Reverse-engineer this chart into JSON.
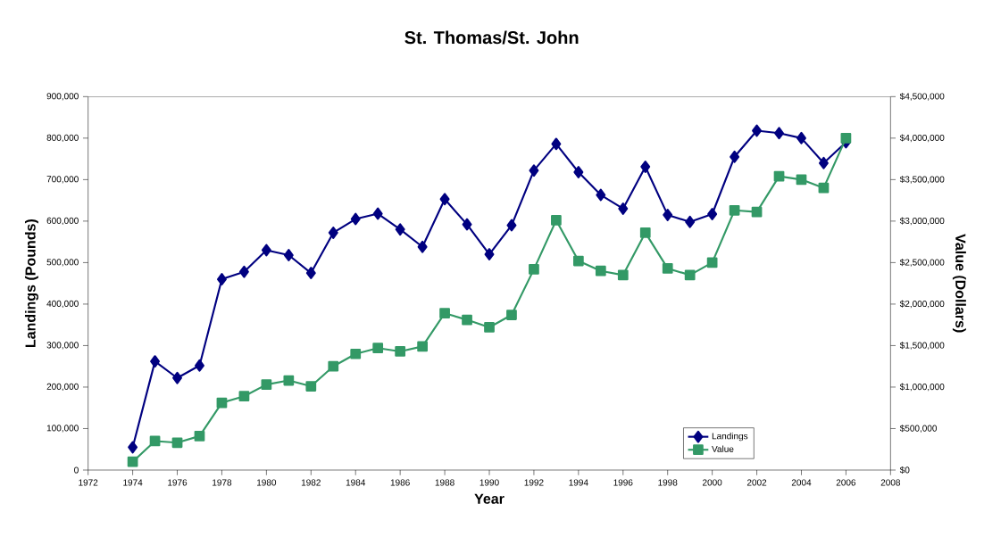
{
  "chart_data": {
    "type": "line",
    "title": "St. Thomas/St. John",
    "xlabel": "Year",
    "ylabel": "Landings (Pounds)",
    "y2label": "Value (Dollars)",
    "x": [
      1974,
      1975,
      1976,
      1977,
      1978,
      1979,
      1980,
      1981,
      1982,
      1983,
      1984,
      1985,
      1986,
      1987,
      1988,
      1989,
      1990,
      1991,
      1992,
      1993,
      1994,
      1995,
      1996,
      1997,
      1998,
      1999,
      2000,
      2001,
      2002,
      2003,
      2004,
      2005,
      2006
    ],
    "series": [
      {
        "name": "Landings",
        "color": "#000080",
        "marker": "diamond",
        "values": [
          55000,
          262000,
          222000,
          252000,
          460000,
          478000,
          530000,
          518000,
          475000,
          572000,
          605000,
          618000,
          580000,
          538000,
          653000,
          592000,
          520000,
          590000,
          722000,
          786000,
          718000,
          663000,
          630000,
          731000,
          615000,
          598000,
          617000,
          755000,
          818000,
          812000,
          800000,
          740000,
          790000
        ]
      },
      {
        "name": "Value",
        "color": "#339966",
        "marker": "square",
        "axis": "y2",
        "values": [
          100000,
          350000,
          330000,
          410000,
          810000,
          890000,
          1030000,
          1080000,
          1010000,
          1250000,
          1400000,
          1470000,
          1430000,
          1490000,
          1890000,
          1810000,
          1720000,
          1870000,
          2420000,
          3010000,
          2520000,
          2400000,
          2350000,
          2860000,
          2430000,
          2350000,
          2500000,
          3130000,
          3110000,
          3540000,
          3500000,
          3400000,
          4000000
        ]
      }
    ],
    "xlim": [
      1972,
      2008
    ],
    "xticks": [
      1972,
      1974,
      1976,
      1978,
      1980,
      1982,
      1984,
      1986,
      1988,
      1990,
      1992,
      1994,
      1996,
      1998,
      2000,
      2002,
      2004,
      2006,
      2008
    ],
    "ylim": [
      0,
      900000
    ],
    "yticks": [
      {
        "value": 0,
        "label": "0"
      },
      {
        "value": 100000,
        "label": "100,000"
      },
      {
        "value": 200000,
        "label": "200,000"
      },
      {
        "value": 300000,
        "label": "300,000"
      },
      {
        "value": 400000,
        "label": "400,000"
      },
      {
        "value": 500000,
        "label": "500,000"
      },
      {
        "value": 600000,
        "label": "600,000"
      },
      {
        "value": 700000,
        "label": "700,000"
      },
      {
        "value": 800000,
        "label": "800,000"
      },
      {
        "value": 900000,
        "label": "900,000"
      }
    ],
    "y2lim": [
      0,
      4500000
    ],
    "y2ticks": [
      {
        "value": 0,
        "label": "$0"
      },
      {
        "value": 500000,
        "label": "$500,000"
      },
      {
        "value": 1000000,
        "label": "$1,000,000"
      },
      {
        "value": 1500000,
        "label": "$1,500,000"
      },
      {
        "value": 2000000,
        "label": "$2,000,000"
      },
      {
        "value": 2500000,
        "label": "$2,500,000"
      },
      {
        "value": 3000000,
        "label": "$3,000,000"
      },
      {
        "value": 3500000,
        "label": "$3,500,000"
      },
      {
        "value": 4000000,
        "label": "$4,000,000"
      },
      {
        "value": 4500000,
        "label": "$4,500,000"
      }
    ],
    "legend": "bottom right",
    "grid": false,
    "line_style": "solid"
  }
}
